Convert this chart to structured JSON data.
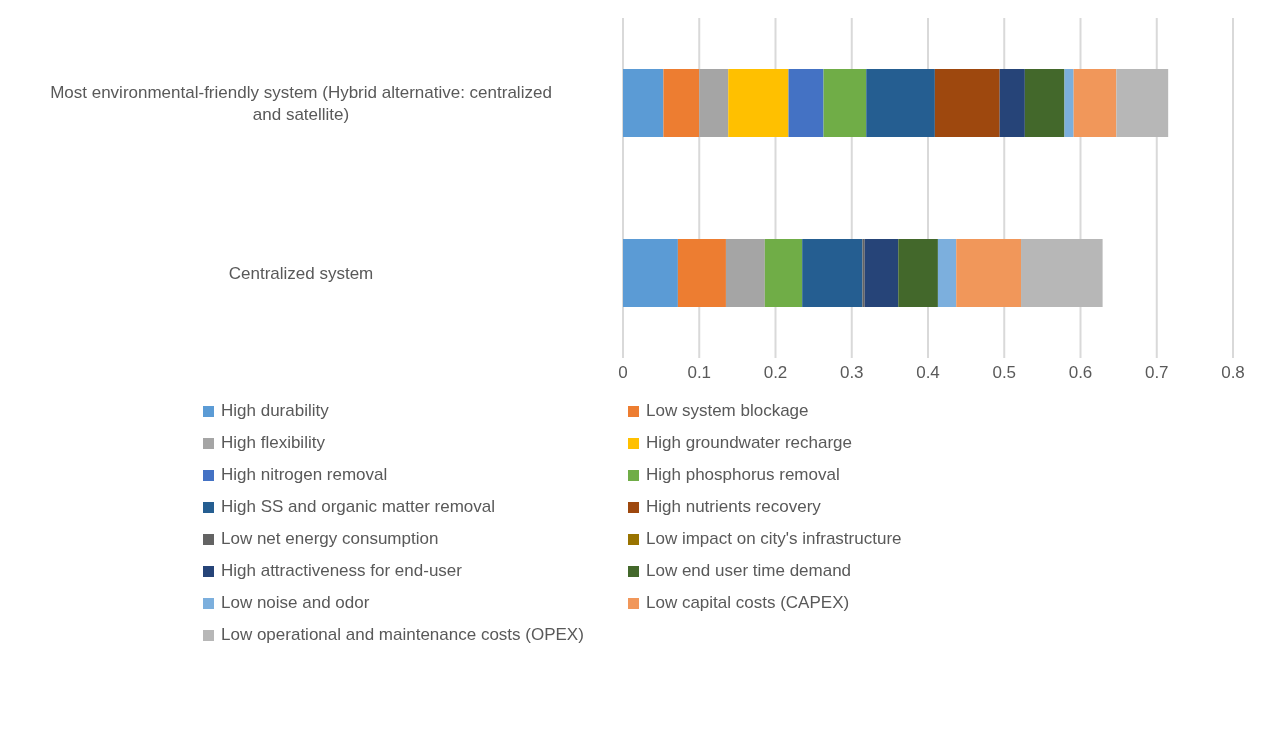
{
  "chart_data": {
    "type": "bar",
    "orientation": "horizontal",
    "stacked": true,
    "categories": [
      "Most environmental-friendly system (Hybrid alternative: centralized and satellite)",
      "Centralized system"
    ],
    "series": [
      {
        "name": "High durability",
        "color": "#5b9bd5",
        "values": [
          0.053,
          0.072
        ]
      },
      {
        "name": "Low system blockage",
        "color": "#ed7d31",
        "values": [
          0.047,
          0.063
        ]
      },
      {
        "name": "High flexibility",
        "color": "#a5a5a5",
        "values": [
          0.038,
          0.051
        ]
      },
      {
        "name": "High groundwater recharge",
        "color": "#ffc000",
        "values": [
          0.079,
          0
        ]
      },
      {
        "name": "High nitrogen removal",
        "color": "#4472c4",
        "values": [
          0.046,
          0
        ]
      },
      {
        "name": "High phosphorus removal",
        "color": "#70ad47",
        "values": [
          0.056,
          0.049
        ]
      },
      {
        "name": "High SS and organic matter removal",
        "color": "#255e91",
        "values": [
          0.09,
          0.079
        ]
      },
      {
        "name": "High nutrients recovery",
        "color": "#9e480e",
        "values": [
          0.085,
          0
        ]
      },
      {
        "name": "Low net energy consumption",
        "color": "#636363",
        "values": [
          0,
          0.003
        ]
      },
      {
        "name": "Low impact on city's infrastructure",
        "color": "#997300",
        "values": [
          0,
          0
        ]
      },
      {
        "name": "High attractiveness for end-user",
        "color": "#264478",
        "values": [
          0.033,
          0.044
        ]
      },
      {
        "name": "Low end user time demand",
        "color": "#43682b",
        "values": [
          0.052,
          0.052
        ]
      },
      {
        "name": "Low noise and odor",
        "color": "#7cafdd",
        "values": [
          0.012,
          0.024
        ]
      },
      {
        "name": "Low capital costs (CAPEX)",
        "color": "#f1975a",
        "values": [
          0.056,
          0.085
        ]
      },
      {
        "name": "Low operational and maintenance costs (OPEX)",
        "color": "#b7b7b7",
        "values": [
          0.068,
          0.107
        ]
      }
    ],
    "xlim": [
      0,
      0.8
    ],
    "xticks": [
      0,
      0.1,
      0.2,
      0.3,
      0.4,
      0.5,
      0.6,
      0.7,
      0.8
    ],
    "grid": "x",
    "legend": "bottom"
  }
}
